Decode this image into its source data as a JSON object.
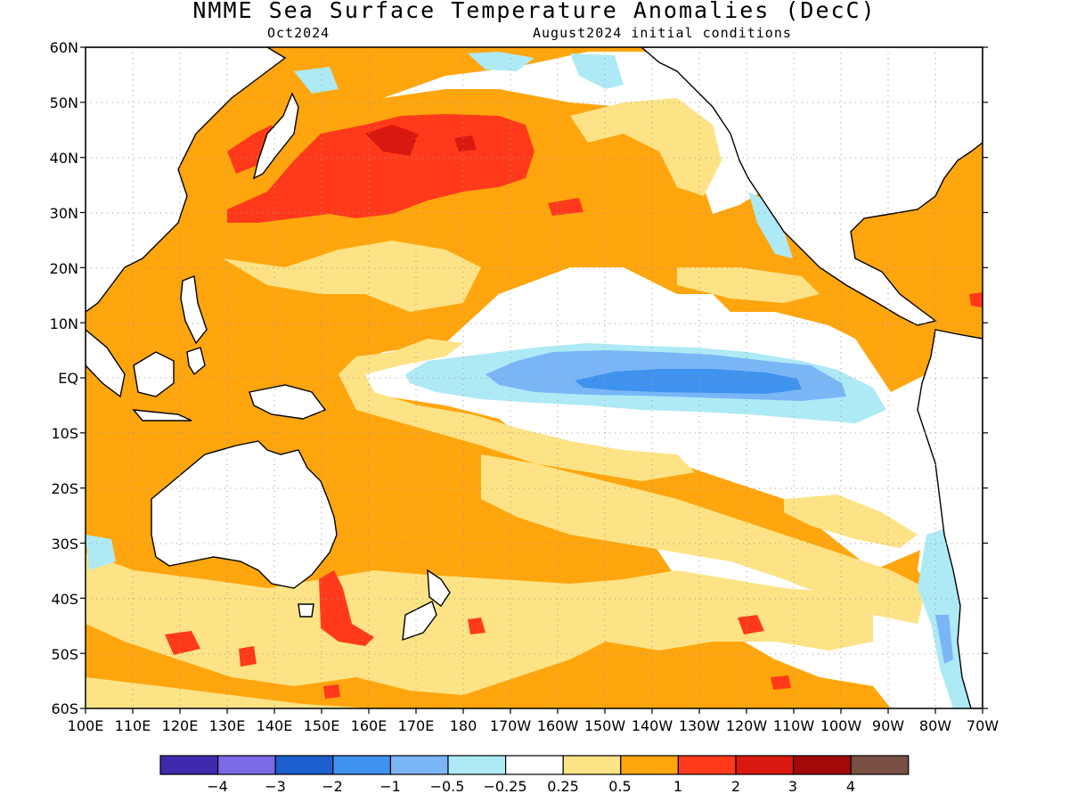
{
  "title": "NMME Sea Surface Temperature Anomalies (DecC)",
  "target_month": "Oct2024",
  "initial_conditions": "August2024 initial conditions",
  "lat_labels": [
    "60N",
    "50N",
    "40N",
    "30N",
    "20N",
    "10N",
    "EQ",
    "10S",
    "20S",
    "30S",
    "40S",
    "50S",
    "60S"
  ],
  "lon_labels": [
    "100E",
    "110E",
    "120E",
    "130E",
    "140E",
    "150E",
    "160E",
    "170E",
    "180",
    "170W",
    "160W",
    "150W",
    "140W",
    "130W",
    "120W",
    "110W",
    "100W",
    "90W",
    "80W",
    "70W"
  ],
  "colorbar": {
    "colors": [
      "#3f2aad",
      "#7a6ae6",
      "#1e5fd0",
      "#3f93ef",
      "#7ab6f6",
      "#aeeaf6",
      "#ffffff",
      "#fde385",
      "#ffa50e",
      "#ff3a1a",
      "#d91810",
      "#a20a0a",
      "#7a4f43"
    ],
    "tick_labels": [
      "−4",
      "−3",
      "−2",
      "−1",
      "−0.5",
      "−0.25",
      "0.25",
      "0.5",
      "1",
      "2",
      "3",
      "4"
    ]
  }
}
